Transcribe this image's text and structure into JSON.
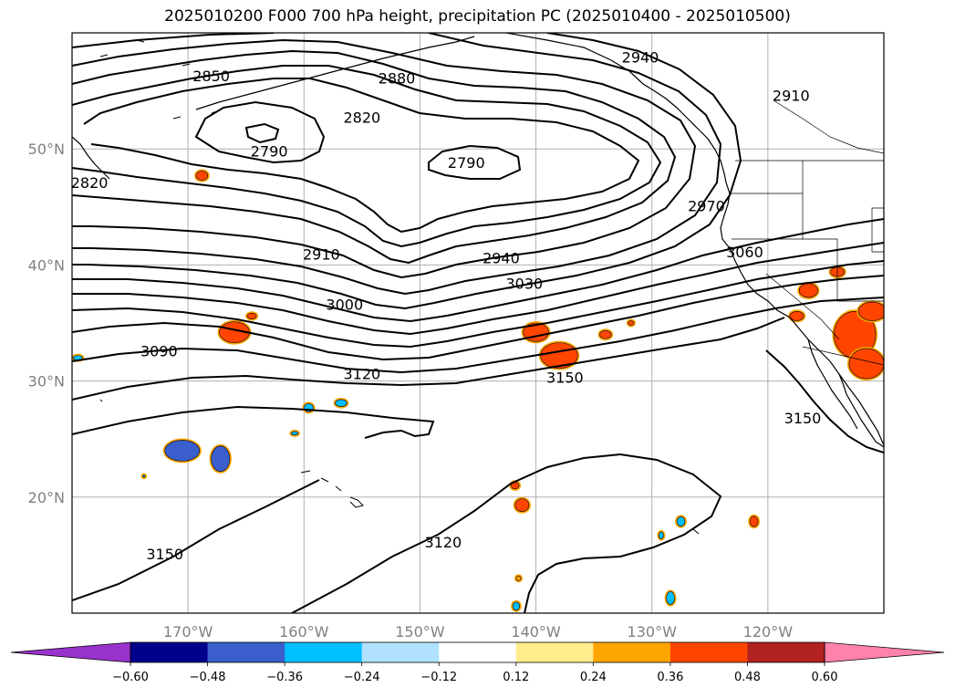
{
  "title": "2025010200 F000 700 hPa height, precipitation PC (2025010400 - 2025010500)",
  "map": {
    "projection": "plate-carree",
    "lon_range": [
      -180,
      -110
    ],
    "lat_range": [
      10,
      60
    ],
    "gridlines": true,
    "lon_ticks": [
      {
        "value": -170,
        "label": "170°W"
      },
      {
        "value": -160,
        "label": "160°W"
      },
      {
        "value": -150,
        "label": "150°W"
      },
      {
        "value": -140,
        "label": "140°W"
      },
      {
        "value": -130,
        "label": "130°W"
      },
      {
        "value": -120,
        "label": "120°W"
      }
    ],
    "lat_ticks": [
      {
        "value": 50,
        "label": "50°N"
      },
      {
        "value": 40,
        "label": "40°N"
      },
      {
        "value": 30,
        "label": "30°N"
      },
      {
        "value": 20,
        "label": "20°N"
      }
    ],
    "contour_color": "#000000",
    "coast_color": "#000000",
    "contour_labels": [
      {
        "text": "2850",
        "lon": -168,
        "lat": 56.2
      },
      {
        "text": "2880",
        "lon": -152,
        "lat": 56.0
      },
      {
        "text": "2940",
        "lon": -131,
        "lat": 57.8
      },
      {
        "text": "2910",
        "lon": -118,
        "lat": 54.5
      },
      {
        "text": "2820",
        "lon": -155,
        "lat": 52.6
      },
      {
        "text": "2790",
        "lon": -163,
        "lat": 49.7
      },
      {
        "text": "2790",
        "lon": -146,
        "lat": 48.7
      },
      {
        "text": "2820",
        "lon": -178.5,
        "lat": 47.0
      },
      {
        "text": "2970",
        "lon": -125.3,
        "lat": 45.0
      },
      {
        "text": "2910",
        "lon": -158.5,
        "lat": 40.8
      },
      {
        "text": "2940",
        "lon": -143,
        "lat": 40.5
      },
      {
        "text": "3060",
        "lon": -122,
        "lat": 41.0
      },
      {
        "text": "3030",
        "lon": -141,
        "lat": 38.3
      },
      {
        "text": "3000",
        "lon": -156.5,
        "lat": 36.5
      },
      {
        "text": "3090",
        "lon": -172.5,
        "lat": 32.5
      },
      {
        "text": "3120",
        "lon": -155,
        "lat": 30.5
      },
      {
        "text": "3150",
        "lon": -137.5,
        "lat": 30.2
      },
      {
        "text": "3150",
        "lon": -117,
        "lat": 26.7
      },
      {
        "text": "3150",
        "lon": -172,
        "lat": 15.0
      },
      {
        "text": "3120",
        "lon": -148,
        "lat": 16.0
      }
    ],
    "precip_patches": [
      {
        "lon": -168.8,
        "lat": 47.7,
        "rx": 0.5,
        "ry": 0.4,
        "color": "#ff4500"
      },
      {
        "lon": -166,
        "lat": 34.2,
        "rx": 1.3,
        "ry": 0.9,
        "color": "#ff4500"
      },
      {
        "lon": -164.5,
        "lat": 35.6,
        "rx": 0.4,
        "ry": 0.25,
        "color": "#ff4500"
      },
      {
        "lon": -140,
        "lat": 34.2,
        "rx": 1.1,
        "ry": 0.8,
        "color": "#ff4500"
      },
      {
        "lon": -138,
        "lat": 32.2,
        "rx": 1.6,
        "ry": 1.1,
        "color": "#ff4500"
      },
      {
        "lon": -134,
        "lat": 34.0,
        "rx": 0.5,
        "ry": 0.35,
        "color": "#ff4500"
      },
      {
        "lon": -131.8,
        "lat": 35.0,
        "rx": 0.25,
        "ry": 0.2,
        "color": "#ff4500"
      },
      {
        "lon": -116.5,
        "lat": 37.8,
        "rx": 0.8,
        "ry": 0.6,
        "color": "#ff4500"
      },
      {
        "lon": -114,
        "lat": 39.4,
        "rx": 0.6,
        "ry": 0.4,
        "color": "#ff4500"
      },
      {
        "lon": -117.5,
        "lat": 35.6,
        "rx": 0.6,
        "ry": 0.4,
        "color": "#ff4500"
      },
      {
        "lon": -112.5,
        "lat": 34.0,
        "rx": 1.8,
        "ry": 2.0,
        "color": "#ff4500"
      },
      {
        "lon": -111.5,
        "lat": 31.5,
        "rx": 1.5,
        "ry": 1.3,
        "color": "#ff4500"
      },
      {
        "lon": -111,
        "lat": 36.0,
        "rx": 1.2,
        "ry": 0.8,
        "color": "#ff4500"
      },
      {
        "lon": -141.8,
        "lat": 21.0,
        "rx": 0.35,
        "ry": 0.3,
        "color": "#ff4500"
      },
      {
        "lon": -141.2,
        "lat": 19.3,
        "rx": 0.6,
        "ry": 0.55,
        "color": "#ff4500"
      },
      {
        "lon": -121.2,
        "lat": 17.9,
        "rx": 0.35,
        "ry": 0.45,
        "color": "#ff4500"
      },
      {
        "lon": -141.5,
        "lat": 13.0,
        "rx": 0.2,
        "ry": 0.2,
        "color": "#ffa500"
      },
      {
        "lon": -170.5,
        "lat": 24.0,
        "rx": 1.5,
        "ry": 0.9,
        "color": "#3a5fcd"
      },
      {
        "lon": -167.2,
        "lat": 23.3,
        "rx": 0.8,
        "ry": 1.1,
        "color": "#3a5fcd"
      },
      {
        "lon": -159.6,
        "lat": 27.7,
        "rx": 0.4,
        "ry": 0.35,
        "color": "#00bfff"
      },
      {
        "lon": -156.8,
        "lat": 28.1,
        "rx": 0.5,
        "ry": 0.3,
        "color": "#00bfff"
      },
      {
        "lon": -160.8,
        "lat": 25.5,
        "rx": 0.3,
        "ry": 0.15,
        "color": "#00bfff"
      },
      {
        "lon": -179.5,
        "lat": 32.0,
        "rx": 0.4,
        "ry": 0.2,
        "color": "#00bfff"
      },
      {
        "lon": -127.5,
        "lat": 17.9,
        "rx": 0.35,
        "ry": 0.4,
        "color": "#00bfff"
      },
      {
        "lon": -129.2,
        "lat": 16.7,
        "rx": 0.2,
        "ry": 0.3,
        "color": "#00bfff"
      },
      {
        "lon": -128.4,
        "lat": 11.3,
        "rx": 0.35,
        "ry": 0.55,
        "color": "#00bfff"
      },
      {
        "lon": -141.7,
        "lat": 10.6,
        "rx": 0.3,
        "ry": 0.35,
        "color": "#00bfff"
      },
      {
        "lon": -173.8,
        "lat": 21.8,
        "rx": 0.1,
        "ry": 0.1,
        "color": "#00bfff"
      }
    ]
  },
  "colorbar": {
    "labels": [
      "−0.60",
      "−0.48",
      "−0.36",
      "−0.24",
      "−0.12",
      "0.12",
      "0.24",
      "0.36",
      "0.48",
      "0.60"
    ],
    "boundaries": [
      -0.6,
      -0.48,
      -0.36,
      -0.24,
      -0.12,
      0.12,
      0.24,
      0.36,
      0.48,
      0.6
    ],
    "under_color": "#9932cc",
    "over_color": "#ff82ab",
    "colors": [
      "#00008b",
      "#3a5fcd",
      "#00bfff",
      "#b0e2ff",
      "#ffffff",
      "#ffec8b",
      "#ffa500",
      "#ff4500",
      "#b22222"
    ]
  }
}
